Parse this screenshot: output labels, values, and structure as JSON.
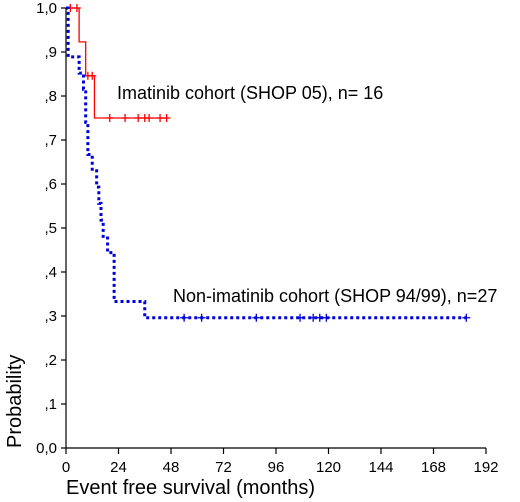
{
  "chart_data": {
    "type": "line",
    "step": true,
    "xlabel": "Event free survival (months)",
    "ylabel": "Probability",
    "xlim": [
      0,
      192
    ],
    "ylim": [
      0,
      1
    ],
    "x_ticks": [
      "0",
      "24",
      "48",
      "72",
      "96",
      "120",
      "144",
      "168",
      "192"
    ],
    "y_ticks": [
      "0,0",
      ",1",
      ",2",
      ",3",
      ",4",
      ",5",
      ",6",
      ",7",
      ",8",
      ",9",
      "1,0"
    ],
    "grid": false,
    "legend": "none",
    "series": [
      {
        "name": "Imatinib cohort (SHOP 05), n= 16",
        "color": "#ff0000",
        "line_style": "solid",
        "steps": [
          [
            0,
            1.0
          ],
          [
            6,
            0.923
          ],
          [
            9,
            0.846
          ],
          [
            13,
            0.75
          ],
          [
            46,
            0.75
          ]
        ],
        "censored": [
          [
            2,
            1.0
          ],
          [
            5,
            1.0
          ],
          [
            10,
            0.846
          ],
          [
            12,
            0.846
          ],
          [
            20,
            0.75
          ],
          [
            27,
            0.75
          ],
          [
            33,
            0.75
          ],
          [
            36,
            0.75
          ],
          [
            38,
            0.75
          ],
          [
            43,
            0.75
          ],
          [
            46,
            0.75
          ]
        ]
      },
      {
        "name": "Non-imatinib cohort (SHOP 94/99), n=27",
        "color": "#0000dd",
        "line_style": "dotted",
        "steps": [
          [
            0,
            1.0
          ],
          [
            1,
            0.889
          ],
          [
            6,
            0.852
          ],
          [
            8,
            0.815
          ],
          [
            9,
            0.74
          ],
          [
            10,
            0.667
          ],
          [
            12,
            0.63
          ],
          [
            14,
            0.593
          ],
          [
            15,
            0.556
          ],
          [
            16,
            0.518
          ],
          [
            17,
            0.481
          ],
          [
            19,
            0.444
          ],
          [
            22,
            0.333
          ],
          [
            36,
            0.296
          ],
          [
            183,
            0.296
          ]
        ],
        "censored": [
          [
            54,
            0.296
          ],
          [
            62,
            0.296
          ],
          [
            87,
            0.296
          ],
          [
            107,
            0.296
          ],
          [
            113,
            0.296
          ],
          [
            116,
            0.296
          ],
          [
            119,
            0.296
          ],
          [
            183,
            0.296
          ]
        ]
      }
    ]
  }
}
